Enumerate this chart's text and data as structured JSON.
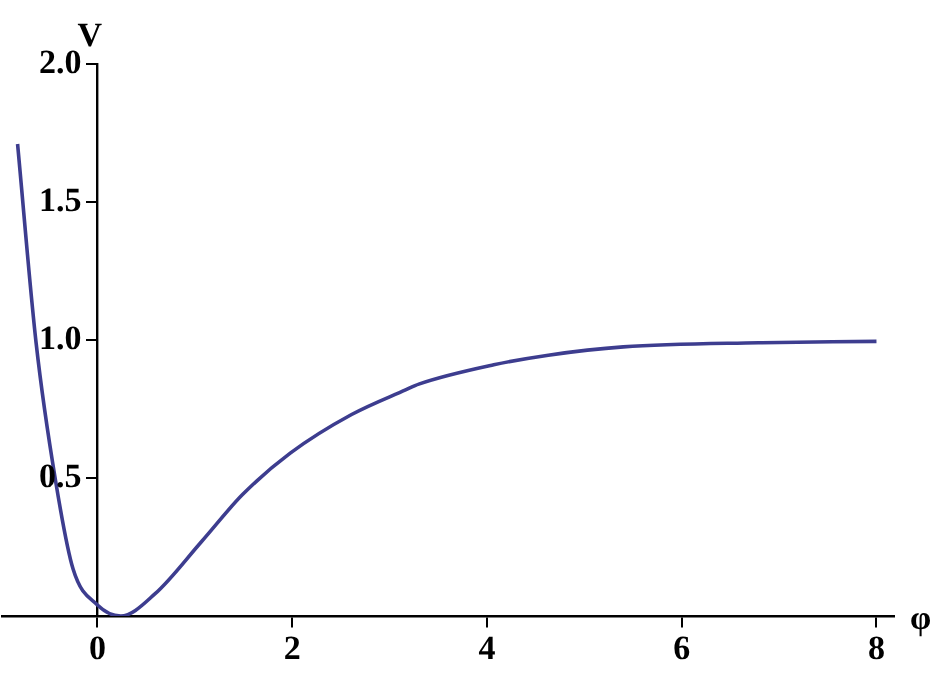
{
  "chart_data": {
    "type": "line",
    "xlabel": "φ",
    "ylabel": "V",
    "xlim": [
      -0.98,
      8.18
    ],
    "ylim": [
      0,
      2.0
    ],
    "xticks": [
      0,
      2,
      4,
      6,
      8
    ],
    "yticks": [
      0.5,
      {
        "value": 1,
        "label": "1.0"
      },
      1.5,
      {
        "value": 2,
        "label": "2.0"
      }
    ],
    "grid": false,
    "legend": false,
    "marker": "none",
    "line_style": "solid",
    "series": [
      {
        "color": "#3d3d8f",
        "x": [
          -0.82,
          -0.63,
          -0.43,
          -0.25,
          0,
          0.24,
          0.59,
          1.07,
          1.49,
          1.98,
          2.61,
          3.17,
          3.3,
          4.07,
          4.63,
          5.4,
          6.79,
          8.0
        ],
        "values": [
          1.71,
          0.99,
          0.49,
          0.17,
          0.04,
          0.0,
          0.08,
          0.27,
          0.44,
          0.59,
          0.73,
          0.82,
          0.84,
          0.91,
          0.945,
          0.975,
          0.99,
          0.995
        ]
      }
    ]
  }
}
